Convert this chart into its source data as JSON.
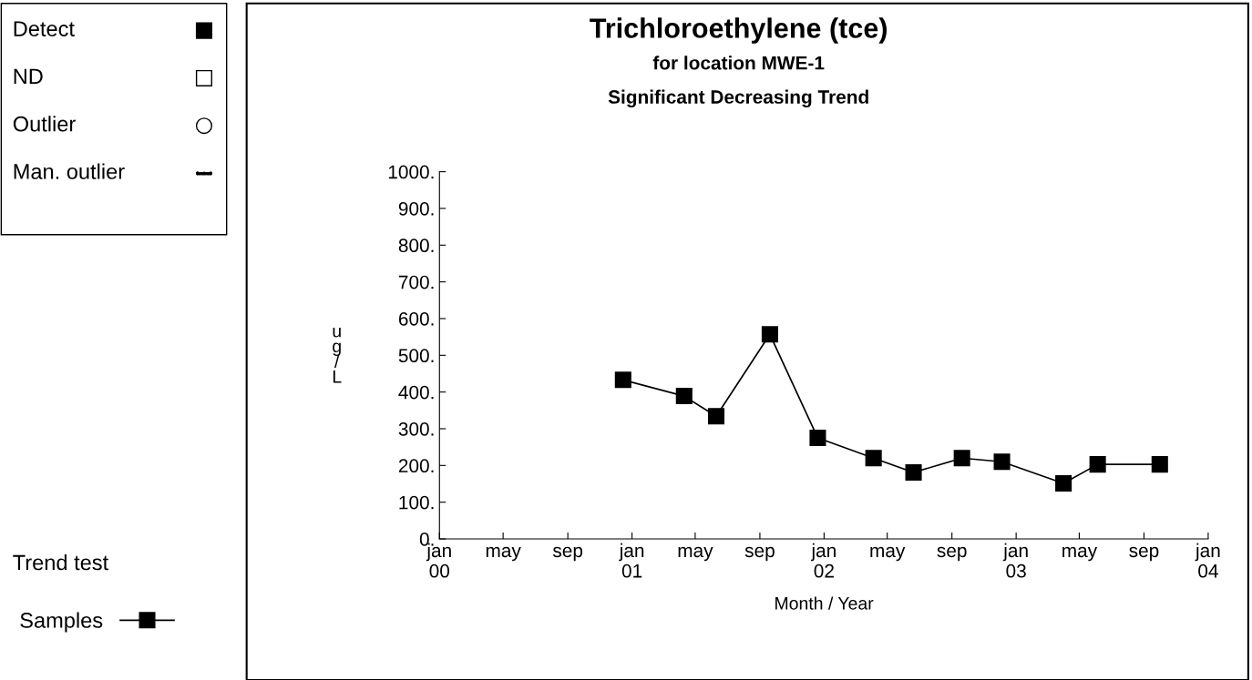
{
  "chart_data": {
    "type": "line",
    "title": "Trichloroethylene (tce)",
    "subtitle": "for location MWE-1",
    "annotations": [
      "Significant Decreasing Trend",
      "Detect",
      "ND",
      "Outlier",
      "Man. outlier",
      "Trend test"
    ],
    "xlabel": "Month / Year",
    "ylabel": "ug/L",
    "x": [
      "2000-12-15",
      "2001-04-10",
      "2001-06-10",
      "2001-09-20",
      "2001-12-20",
      "2002-04-05",
      "2002-06-20",
      "2002-09-20",
      "2002-12-05",
      "2003-04-01",
      "2003-06-05",
      "2003-10-01"
    ],
    "series": [
      {
        "name": "Samples",
        "color": "#000000",
        "values": [
          433,
          389,
          334,
          557,
          275,
          220,
          181,
          220,
          210,
          151,
          203,
          203
        ]
      }
    ],
    "xlim": [
      "2000-01-01",
      "2004-01-01"
    ],
    "xticks": [
      {
        "value": "2000-01-01",
        "label": "jan\n00"
      },
      {
        "value": "2000-05-01",
        "label": "may"
      },
      {
        "value": "2000-09-01",
        "label": "sep"
      },
      {
        "value": "2001-01-01",
        "label": "jan\n01"
      },
      {
        "value": "2001-05-01",
        "label": "may"
      },
      {
        "value": "2001-09-01",
        "label": "sep"
      },
      {
        "value": "2002-01-01",
        "label": "jan\n02"
      },
      {
        "value": "2002-05-01",
        "label": "may"
      },
      {
        "value": "2002-09-01",
        "label": "sep"
      },
      {
        "value": "2003-01-01",
        "label": "jan\n03"
      },
      {
        "value": "2003-05-01",
        "label": "may"
      },
      {
        "value": "2003-09-01",
        "label": "sep"
      },
      {
        "value": "2004-01-01",
        "label": "jan\n04"
      }
    ],
    "ylim": [
      0,
      1000
    ],
    "yticks": [
      {
        "value": 0,
        "label": "0."
      },
      {
        "value": 100,
        "label": "100."
      },
      {
        "value": 200,
        "label": "200."
      },
      {
        "value": 300,
        "label": "300."
      },
      {
        "value": 400,
        "label": "400."
      },
      {
        "value": 500,
        "label": "500."
      },
      {
        "value": 600,
        "label": "600."
      },
      {
        "value": 700,
        "label": "700."
      },
      {
        "value": 800,
        "label": "800."
      },
      {
        "value": 900,
        "label": "900."
      },
      {
        "value": 1000,
        "label": "1000."
      }
    ],
    "grid": false,
    "legend": "bottom left",
    "marker": "square",
    "line_style": "solid"
  }
}
